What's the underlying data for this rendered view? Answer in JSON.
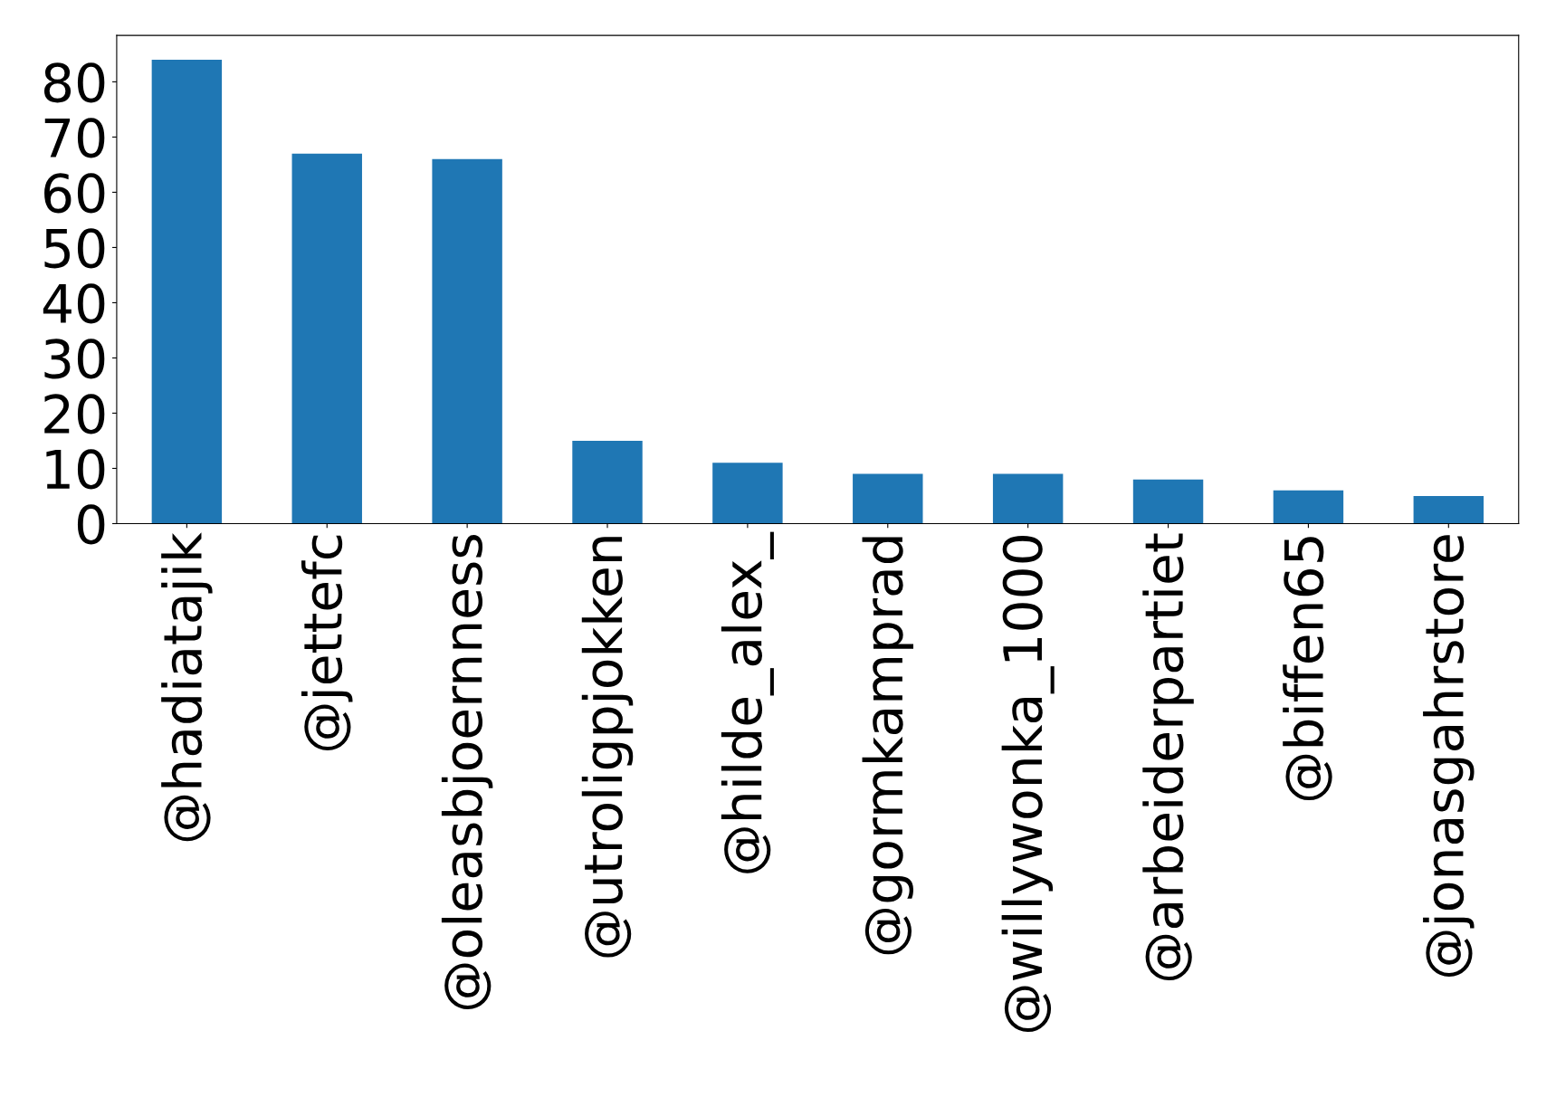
{
  "chart_data": {
    "type": "bar",
    "categories": [
      "@hadiatajik",
      "@jettefc",
      "@oleasbjoernness",
      "@utroligpjokken",
      "@hilde_alex_",
      "@gormkamprad",
      "@willywonka_1000",
      "@arbeiderpartiet",
      "@biffen65",
      "@jonasgahrstore"
    ],
    "values": [
      84,
      67,
      66,
      15,
      11,
      9,
      9,
      8,
      6,
      5
    ],
    "color": "#1f77b4",
    "ylim": [
      0,
      88.4
    ],
    "yticks": [
      0,
      10,
      20,
      30,
      40,
      50,
      60,
      70,
      80
    ],
    "grid": false,
    "legend": false
  }
}
